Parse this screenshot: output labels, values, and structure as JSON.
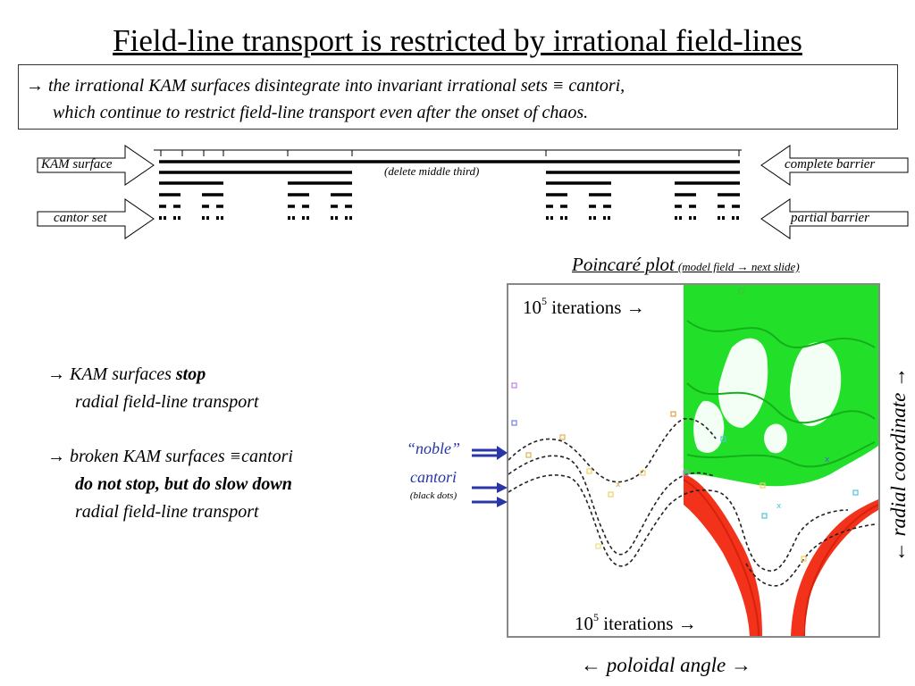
{
  "title": "Field-line transport is restricted by irrational field-lines",
  "summary": {
    "arrow": "→",
    "line1": "the irrational KAM surfaces disintegrate into invariant irrational sets ≡ cantori,",
    "line2": "which continue to restrict field-line transport even after the onset of chaos."
  },
  "cantor_diagram": {
    "kam_surface_label": "KAM surface",
    "cantor_set_label": "cantor set",
    "complete_barrier_label": "complete barrier",
    "partial_barrier_label": "partial barrier",
    "delete_note": "(delete middle third)"
  },
  "plot": {
    "title": "Poincaré plot",
    "subtitle": "(model field → next slide)",
    "iter_top_base": "10",
    "iter_top_exp": "5",
    "iter_top_text": "iterations →",
    "iter_bottom_base": "10",
    "iter_bottom_exp": "5",
    "iter_bottom_text": "iterations →",
    "x_axis_label": "← poloidal angle →",
    "y_axis_label": "← radial coordinate →",
    "colors": {
      "upper_region": "#22e02a",
      "lower_region": "#f2321a",
      "frame": "#888888",
      "noble_arrows": "#2a35a8"
    }
  },
  "noble_label": {
    "line1": "“noble”",
    "line2": "cantori",
    "line3": "(black dots)"
  },
  "bullets": {
    "b1_arrow": "→",
    "b1_text": "KAM surfaces ",
    "b1_bold": "stop",
    "b1_line2": "radial field-line transport",
    "b2_arrow": "→",
    "b2_text": "broken KAM surfaces ≡cantori",
    "b2_bold": "do not stop, but do slow down",
    "b2_line3": "radial field-line transport"
  }
}
